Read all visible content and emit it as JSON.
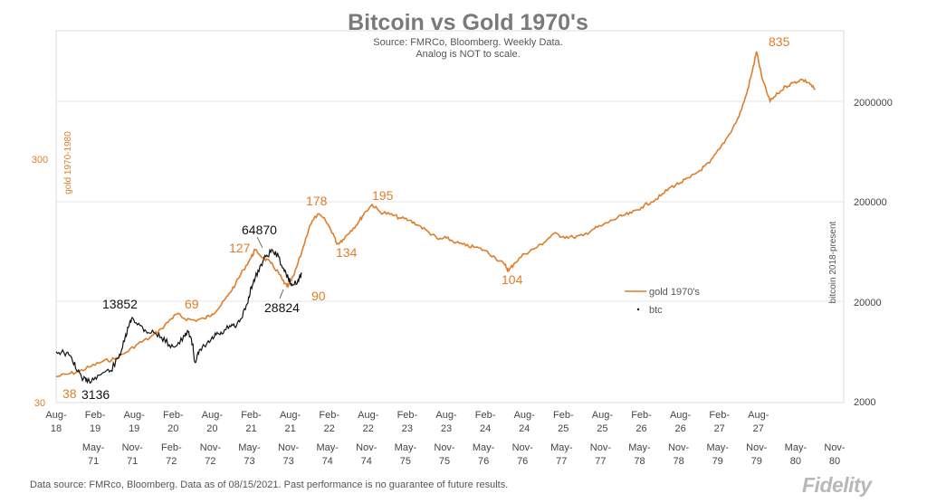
{
  "chart_data": {
    "type": "line",
    "title": "Bitcoin vs Gold 1970's",
    "subtitle_lines": [
      "Source: FMRCo, Bloomberg. Weekly Data.",
      "Analog is NOT to scale."
    ],
    "ylabel_left": "gold 1970-1980",
    "ylabel_right": "bitcoin 2018-present",
    "y_left_scale": "log",
    "y_right_scale": "log",
    "y_left_ticks": [
      "30",
      "300"
    ],
    "y_right_ticks": [
      "2000",
      "20000",
      "200000",
      "2000000"
    ],
    "x_ticks_btc": [
      "Aug-18",
      "Feb-19",
      "Aug-19",
      "Feb-20",
      "Aug-20",
      "Feb-21",
      "Aug-21",
      "Feb-22",
      "Aug-22",
      "Feb-23",
      "Aug-23",
      "Feb-24",
      "Aug-24",
      "Feb-25",
      "Aug-25",
      "Feb-26",
      "Aug-26",
      "Feb-27",
      "Aug-27"
    ],
    "x_ticks_gold": [
      "May-71",
      "Nov-71",
      "Feb-72",
      "Nov-72",
      "May-73",
      "Nov-73",
      "May-74",
      "Nov-74",
      "May-75",
      "Nov-75",
      "May-76",
      "Nov-76",
      "May-77",
      "Nov-77",
      "May-78",
      "Nov-78",
      "May-79",
      "Nov-79",
      "May-80",
      "Nov-80"
    ],
    "legend_position": "center-right",
    "grid": "horizontal",
    "series": [
      {
        "name": "gold 1970's",
        "color": "#e07d2a",
        "axis": "left",
        "points": [
          [
            0,
            38
          ],
          [
            0.3,
            39
          ],
          [
            0.6,
            40
          ],
          [
            0.9,
            42
          ],
          [
            1.2,
            44
          ],
          [
            1.5,
            45
          ],
          [
            1.8,
            48
          ],
          [
            2.1,
            52
          ],
          [
            2.4,
            55
          ],
          [
            2.7,
            60
          ],
          [
            2.95,
            66
          ],
          [
            3.1,
            69
          ],
          [
            3.3,
            66
          ],
          [
            3.55,
            65
          ],
          [
            3.8,
            66
          ],
          [
            4.0,
            69
          ],
          [
            4.2,
            74
          ],
          [
            4.4,
            82
          ],
          [
            4.6,
            92
          ],
          [
            4.8,
            105
          ],
          [
            5.0,
            118
          ],
          [
            5.1,
            127
          ],
          [
            5.3,
            118
          ],
          [
            5.5,
            112
          ],
          [
            5.7,
            102
          ],
          [
            5.85,
            92
          ],
          [
            5.95,
            90
          ],
          [
            6.1,
            100
          ],
          [
            6.3,
            125
          ],
          [
            6.5,
            160
          ],
          [
            6.7,
            178
          ],
          [
            6.9,
            168
          ],
          [
            7.1,
            148
          ],
          [
            7.2,
            134
          ],
          [
            7.35,
            140
          ],
          [
            7.55,
            152
          ],
          [
            7.75,
            165
          ],
          [
            7.9,
            180
          ],
          [
            8.1,
            195
          ],
          [
            8.3,
            182
          ],
          [
            8.55,
            178
          ],
          [
            8.8,
            172
          ],
          [
            9.05,
            168
          ],
          [
            9.3,
            160
          ],
          [
            9.55,
            150
          ],
          [
            9.8,
            140
          ],
          [
            10.0,
            142
          ],
          [
            10.25,
            136
          ],
          [
            10.5,
            132
          ],
          [
            10.75,
            130
          ],
          [
            11.0,
            126
          ],
          [
            11.25,
            118
          ],
          [
            11.5,
            110
          ],
          [
            11.6,
            104
          ],
          [
            11.75,
            112
          ],
          [
            12.0,
            122
          ],
          [
            12.25,
            128
          ],
          [
            12.5,
            136
          ],
          [
            12.75,
            148
          ],
          [
            13.0,
            144
          ],
          [
            13.25,
            143
          ],
          [
            13.5,
            145
          ],
          [
            13.75,
            154
          ],
          [
            14.0,
            160
          ],
          [
            14.25,
            168
          ],
          [
            14.5,
            175
          ],
          [
            14.75,
            180
          ],
          [
            15.0,
            190
          ],
          [
            15.25,
            200
          ],
          [
            15.5,
            212
          ],
          [
            15.75,
            230
          ],
          [
            16.0,
            240
          ],
          [
            16.25,
            252
          ],
          [
            16.5,
            270
          ],
          [
            16.75,
            290
          ],
          [
            17.0,
            330
          ],
          [
            17.25,
            380
          ],
          [
            17.5,
            450
          ],
          [
            17.7,
            560
          ],
          [
            17.85,
            700
          ],
          [
            17.95,
            835
          ],
          [
            18.1,
            640
          ],
          [
            18.3,
            520
          ],
          [
            18.5,
            560
          ],
          [
            18.7,
            600
          ],
          [
            18.9,
            620
          ],
          [
            19.1,
            640
          ],
          [
            19.3,
            620
          ],
          [
            19.45,
            580
          ]
        ]
      },
      {
        "name": "btc",
        "color": "#111111",
        "axis": "right",
        "points": [
          [
            0,
            6300
          ],
          [
            0.2,
            6200
          ],
          [
            0.4,
            5500
          ],
          [
            0.55,
            4000
          ],
          [
            0.7,
            3400
          ],
          [
            0.8,
            3136
          ],
          [
            1.0,
            3500
          ],
          [
            1.2,
            3900
          ],
          [
            1.4,
            4100
          ],
          [
            1.6,
            5500
          ],
          [
            1.75,
            8000
          ],
          [
            1.85,
            11000
          ],
          [
            1.95,
            13852
          ],
          [
            2.15,
            11500
          ],
          [
            2.3,
            10200
          ],
          [
            2.5,
            9800
          ],
          [
            2.7,
            8800
          ],
          [
            2.9,
            7400
          ],
          [
            3.1,
            7300
          ],
          [
            3.3,
            9000
          ],
          [
            3.4,
            10000
          ],
          [
            3.5,
            7500
          ],
          [
            3.55,
            5000
          ],
          [
            3.65,
            6000
          ],
          [
            3.8,
            7200
          ],
          [
            3.95,
            8000
          ],
          [
            4.1,
            9300
          ],
          [
            4.25,
            9500
          ],
          [
            4.45,
            11500
          ],
          [
            4.6,
            11000
          ],
          [
            4.75,
            13500
          ],
          [
            4.9,
            19000
          ],
          [
            5.0,
            28000
          ],
          [
            5.1,
            34000
          ],
          [
            5.25,
            47000
          ],
          [
            5.4,
            58000
          ],
          [
            5.55,
            64870
          ],
          [
            5.7,
            56000
          ],
          [
            5.85,
            40000
          ],
          [
            5.95,
            34000
          ],
          [
            6.05,
            28824
          ],
          [
            6.2,
            33000
          ],
          [
            6.3,
            38000
          ]
        ]
      }
    ],
    "annotations_gold": [
      "38",
      "69",
      "127",
      "90",
      "178",
      "134",
      "195",
      "104",
      "835"
    ],
    "annotations_btc": [
      "3136",
      "13852",
      "64870",
      "28824"
    ]
  },
  "footer": "Data source: FMRco, Bloomberg. Data as of 08/15/2021. Past performance is no guarantee of future results.",
  "logo_text": "Fidelity"
}
